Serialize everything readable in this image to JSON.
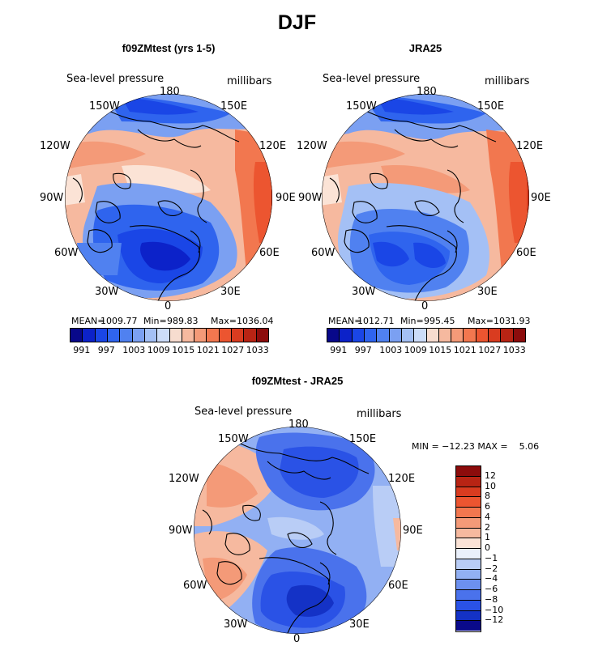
{
  "figure_title": "DJF",
  "panels": [
    {
      "title": "f09ZMtest (yrs 1-5)",
      "variable_label": "Sea-level pressure",
      "units_label": "millibars",
      "lon_labels": {
        "n": "180",
        "nw": "150W",
        "ne": "150E",
        "wnw": "120W",
        "ene": "120E",
        "w": "90W",
        "e": "90E",
        "wsw": "60W",
        "ese": "60E",
        "sw": "30W",
        "se": "30E",
        "s": "0"
      },
      "stats": {
        "mean_label": "MEAN=",
        "mean": "1009.77",
        "min_label": "Min=",
        "min": "989.83",
        "max_label": "Max=",
        "max": "1036.04"
      }
    },
    {
      "title": "JRA25",
      "variable_label": "Sea-level pressure",
      "units_label": "millibars",
      "lon_labels": {
        "n": "180",
        "nw": "150W",
        "ne": "150E",
        "wnw": "120W",
        "ene": "120E",
        "w": "90W",
        "e": "90E",
        "wsw": "60W",
        "ese": "60E",
        "sw": "30W",
        "se": "30E",
        "s": "0"
      },
      "stats": {
        "mean_label": "MEAN=",
        "mean": "1012.71",
        "min_label": "Min=",
        "min": "995.45",
        "max_label": "Max=",
        "max": "1031.93"
      }
    },
    {
      "title": "f09ZMtest - JRA25",
      "variable_label": "Sea-level pressure",
      "units_label": "millibars",
      "lon_labels": {
        "n": "180",
        "nw": "150W",
        "ne": "150E",
        "wnw": "120W",
        "ene": "120E",
        "w": "90W",
        "e": "90E",
        "wsw": "60W",
        "ese": "60E",
        "sw": "30W",
        "se": "30E",
        "s": "0"
      },
      "stats_text": "MIN = −12.23 MAX =    5.06"
    }
  ],
  "abs_colorbar": {
    "colors": [
      "#08088a",
      "#0c22c9",
      "#1a46e6",
      "#2f64ee",
      "#5081f0",
      "#7ba0f2",
      "#a4c0f5",
      "#ccdcf8",
      "#f7dccf",
      "#f6b99f",
      "#f49a78",
      "#f2774f",
      "#ec5530",
      "#d93c20",
      "#b82414",
      "#8c0c0c"
    ],
    "labels": [
      "991",
      "997",
      "1003",
      "1009",
      "1015",
      "1021",
      "1027",
      "1033"
    ]
  },
  "diff_colorbar": {
    "colors": [
      "#8c0c0c",
      "#b82414",
      "#d93c20",
      "#ec5530",
      "#f2774f",
      "#f49a78",
      "#f6b99f",
      "#fbe3d6",
      "#eaf0fb",
      "#b9cdf6",
      "#92b0f3",
      "#6c90ef",
      "#4a72ec",
      "#2a52e6",
      "#1432c6",
      "#0a0a8a"
    ],
    "labels": [
      "12",
      "10",
      "8",
      "6",
      "4",
      "2",
      "1",
      "0",
      "−1",
      "−2",
      "−4",
      "−6",
      "−8",
      "−10",
      "−12"
    ]
  }
}
